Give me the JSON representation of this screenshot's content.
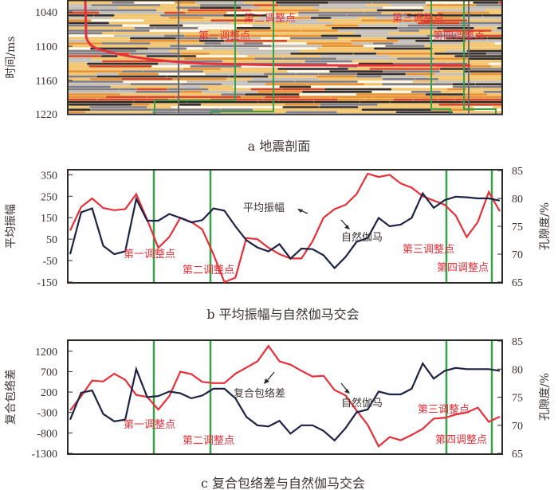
{
  "panels": {
    "a": {
      "caption": "a 地震剖面",
      "ylabel": "时间/ms",
      "yticks": [
        "1040",
        "1100",
        "1160",
        "1220"
      ],
      "annotations": [
        "第一调整点",
        "第二调整点",
        "第三调整点",
        "第四调整点"
      ]
    },
    "b": {
      "caption": "b 平均振幅与自然伽马交会",
      "ylabel_left": "平均振幅",
      "ylabel_right": "孔隙度/%",
      "yticks_left": [
        "350",
        "250",
        "150",
        "50",
        "-50",
        "-150"
      ],
      "yticks_right": [
        "85",
        "80",
        "75",
        "70",
        "65"
      ],
      "series_label_red": "平均振幅",
      "series_label_navy": "自然伽马",
      "annotations": [
        "第一调整点",
        "第二调整点",
        "第三调整点",
        "第四调整点"
      ]
    },
    "c": {
      "caption": "c 复合包络差与自然伽马交会",
      "ylabel_left": "复合包络差",
      "ylabel_right": "孔隙度/%",
      "yticks_left": [
        "1200",
        "700",
        "200",
        "-300",
        "-800",
        "-1300"
      ],
      "yticks_right": [
        "85",
        "80",
        "75",
        "70",
        "65"
      ],
      "series_label_red": "复合包络差",
      "series_label_navy": "自然伽马",
      "annotations": [
        "第一调整点",
        "第二调整点",
        "第三调整点",
        "第四调整点"
      ]
    }
  },
  "colors": {
    "red": "#e8303a",
    "navy": "#1e2346",
    "green": "#3aa04a",
    "frame": "#2e2a28"
  },
  "chart_data": [
    {
      "type": "heatmap",
      "title": "a 地震剖面",
      "ylabel": "时间/ms",
      "ylim": [
        1020,
        1220
      ],
      "yticks": [
        1040,
        1100,
        1160,
        1220
      ],
      "annotations": [
        "第一调整点",
        "第二调整点",
        "第三调整点",
        "第四调整点"
      ]
    },
    {
      "type": "line",
      "title": "b 平均振幅与自然伽马交会",
      "ylabel": "平均振幅",
      "ylabel_right": "孔隙度/%",
      "ylim": [
        -150,
        370
      ],
      "ylim_right": [
        65,
        85
      ],
      "x": [
        0,
        1,
        2,
        3,
        4,
        5,
        6,
        7,
        8,
        9,
        10,
        11,
        12,
        13,
        14,
        15,
        16,
        17,
        18,
        19,
        20,
        21,
        22,
        23,
        24,
        25,
        26,
        27,
        28,
        29,
        30,
        31,
        32,
        33,
        34,
        35,
        36,
        37,
        38,
        39
      ],
      "series": [
        {
          "name": "平均振幅",
          "color": "#e8303a",
          "axis": "left",
          "values": [
            90,
            200,
            240,
            195,
            185,
            190,
            260,
            140,
            10,
            60,
            150,
            130,
            95,
            -20,
            -150,
            -130,
            55,
            50,
            10,
            -20,
            -40,
            -40,
            40,
            150,
            190,
            210,
            260,
            355,
            340,
            350,
            310,
            290,
            250,
            230,
            210,
            160,
            60,
            130,
            270,
            180
          ]
        },
        {
          "name": "自然伽马",
          "color": "#1e2346",
          "axis": "right",
          "values": [
            70.0,
            77.5,
            78.2,
            71.5,
            70.0,
            70.5,
            79.9,
            76.0,
            76.0,
            77.2,
            76.5,
            75.7,
            76.1,
            78.2,
            77.8,
            75.0,
            72.5,
            71.2,
            70.5,
            71.8,
            69.2,
            71.0,
            70.9,
            69.8,
            67.5,
            69.5,
            72.2,
            72.9,
            76.5,
            75.0,
            75.3,
            76.5,
            80.9,
            78.3,
            79.7,
            80.3,
            80.2,
            80.0,
            80.0,
            79.6
          ]
        }
      ],
      "vlines_green": [
        "第一调整点",
        "第二调整点",
        "第三调整点",
        "第四调整点"
      ]
    },
    {
      "type": "line",
      "title": "c 复合包络差与自然伽马交会",
      "ylabel": "复合包络差",
      "ylabel_right": "孔隙度/%",
      "ylim": [
        -1300,
        1450
      ],
      "ylim_right": [
        65,
        85
      ],
      "x": [
        0,
        1,
        2,
        3,
        4,
        5,
        6,
        7,
        8,
        9,
        10,
        11,
        12,
        13,
        14,
        15,
        16,
        17,
        18,
        19,
        20,
        21,
        22,
        23,
        24,
        25,
        26,
        27,
        28,
        29,
        30,
        31,
        32,
        33,
        34,
        35,
        36,
        37,
        38,
        39
      ],
      "series": [
        {
          "name": "复合包络差",
          "color": "#e8303a",
          "axis": "left",
          "values": [
            -250,
            100,
            480,
            460,
            650,
            500,
            130,
            80,
            -230,
            100,
            700,
            640,
            450,
            420,
            420,
            650,
            800,
            950,
            1330,
            950,
            870,
            720,
            580,
            600,
            250,
            120,
            -250,
            -600,
            -1130,
            -900,
            -980,
            -850,
            -700,
            -450,
            -430,
            -350,
            -300,
            -180,
            -530,
            -400
          ]
        },
        {
          "name": "自然伽马",
          "color": "#1e2346",
          "axis": "right",
          "values": [
            71.0,
            75.8,
            76.2,
            72.0,
            70.7,
            71.0,
            80.0,
            75.0,
            75.2,
            76.0,
            75.7,
            74.8,
            75.3,
            76.5,
            76.5,
            74.8,
            71.5,
            70.0,
            69.8,
            70.8,
            68.5,
            70.0,
            70.0,
            69.0,
            67.3,
            69.5,
            72.3,
            72.8,
            76.0,
            75.5,
            75.5,
            76.5,
            81.0,
            78.3,
            79.7,
            80.2,
            80.0,
            80.0,
            80.0,
            79.7
          ]
        }
      ],
      "vlines_green": [
        "第一调整点",
        "第二调整点",
        "第三调整点",
        "第四调整点"
      ]
    }
  ]
}
